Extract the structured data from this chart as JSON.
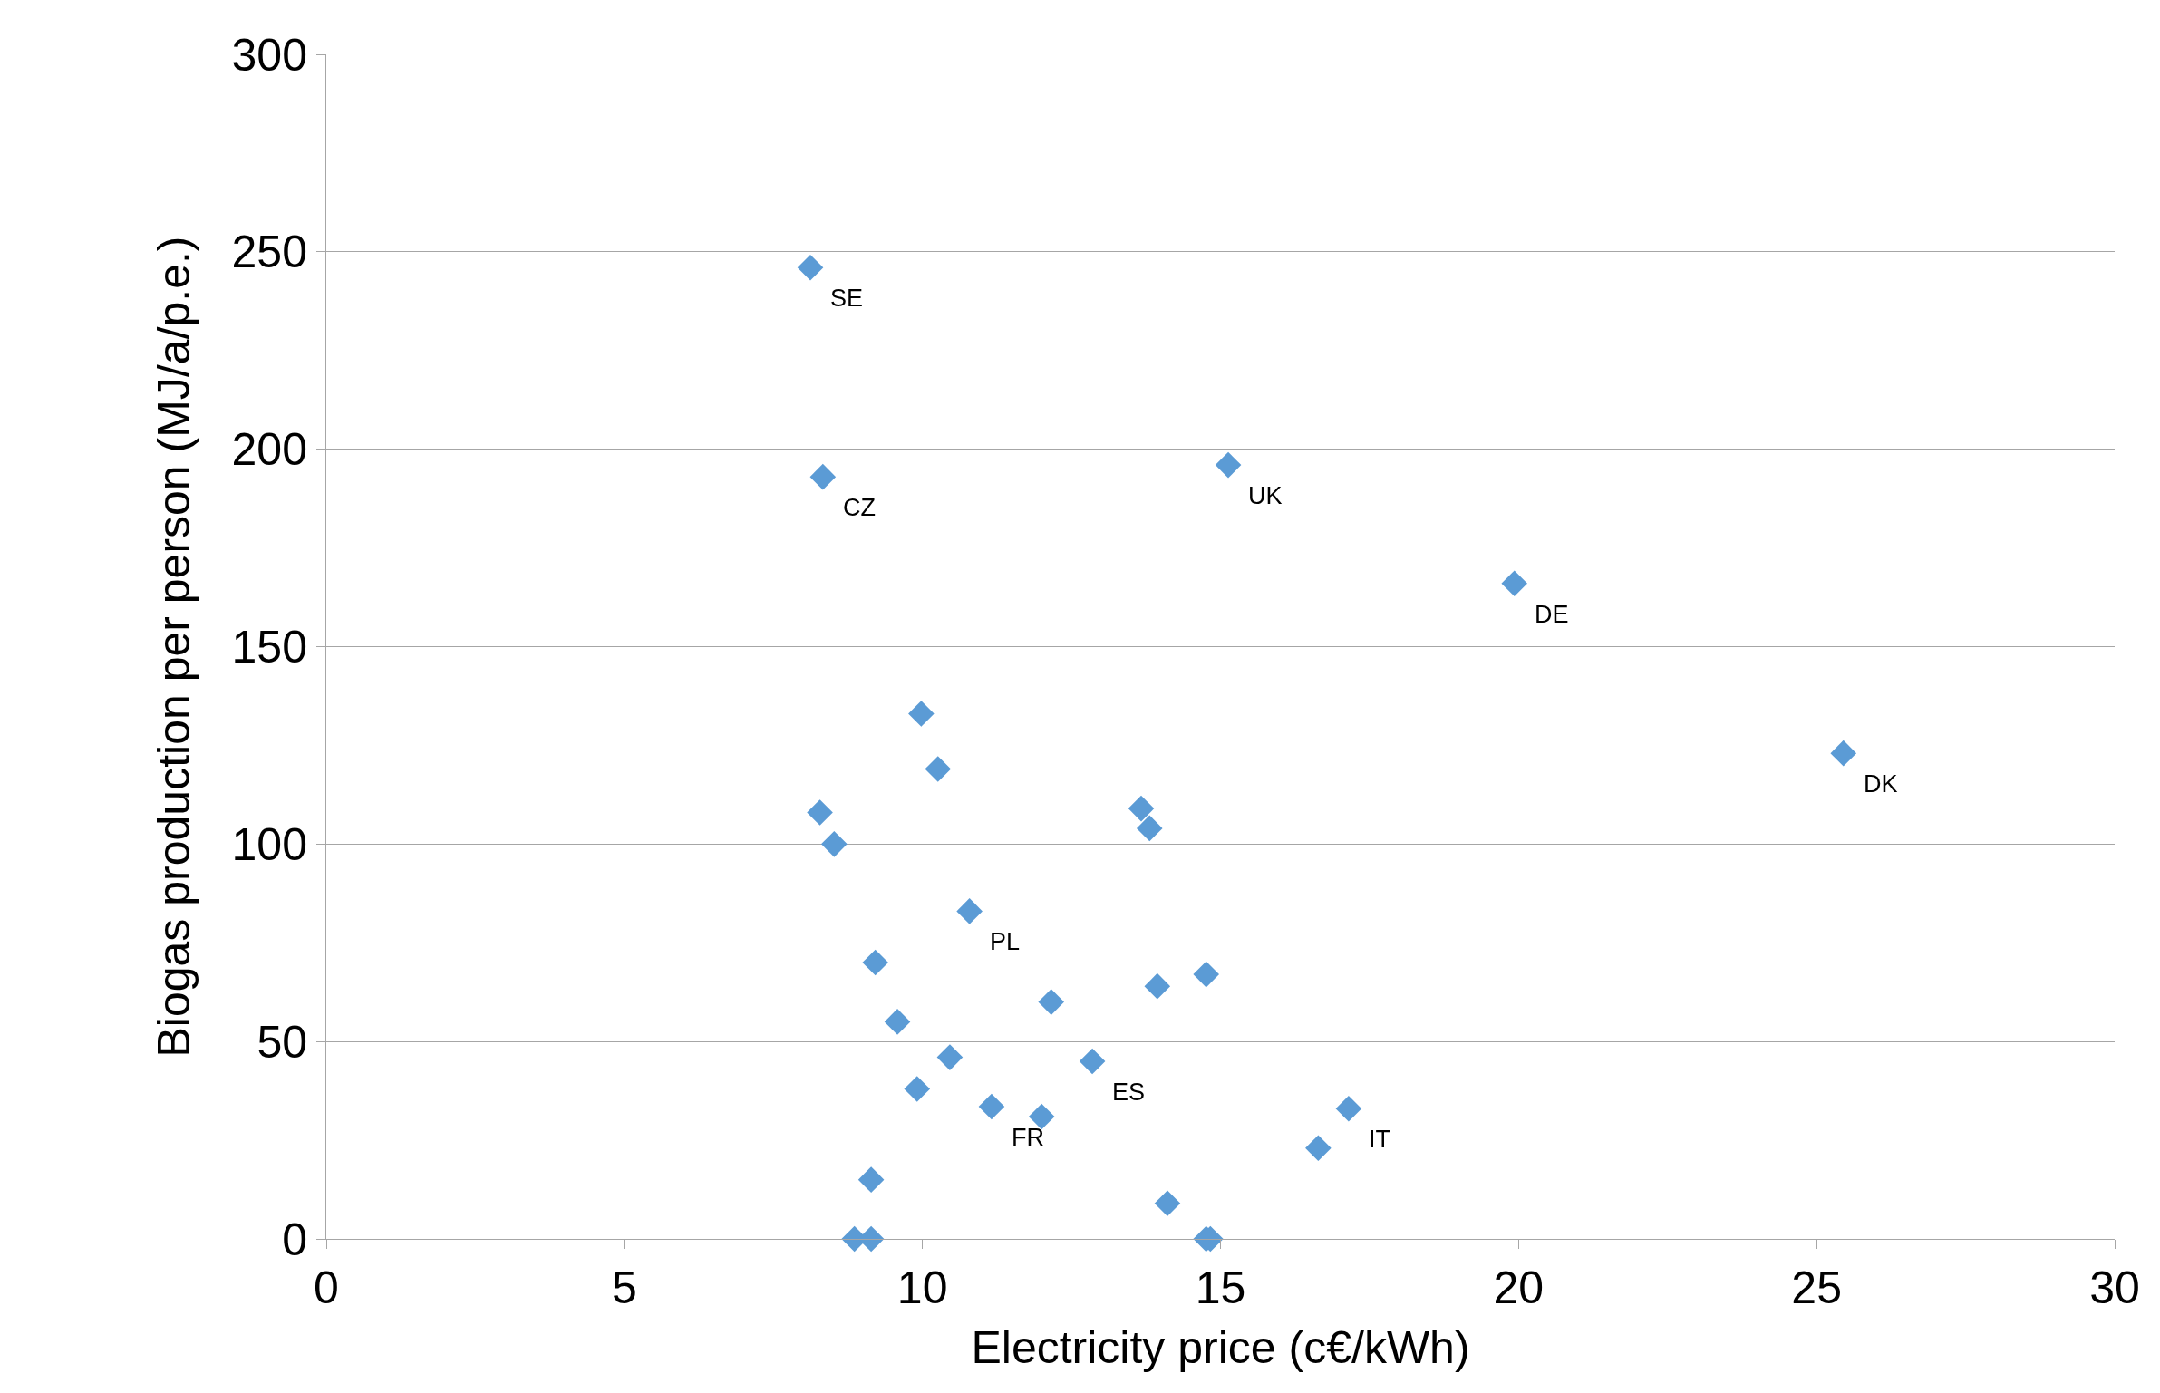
{
  "chart_data": {
    "type": "scatter",
    "xlabel": "Electricity price (c€/kWh)",
    "ylabel": "Biogas production per person (MJ/a/p.e.)",
    "xlim": [
      0,
      30
    ],
    "xticks": [
      0,
      5,
      10,
      15,
      20,
      25,
      30
    ],
    "ylim": [
      0,
      300
    ],
    "yticks": [
      0,
      50,
      100,
      150,
      200,
      250,
      300
    ],
    "grid": "y",
    "marker": "diamond",
    "series": [
      {
        "color": "#5b9bd5",
        "x": [
          8.12,
          8.33,
          15.13,
          19.93,
          25.45,
          9.98,
          10.26,
          8.28,
          8.52,
          13.67,
          13.81,
          10.79,
          9.21,
          9.58,
          12.16,
          13.94,
          14.76,
          10.46,
          12.85,
          9.91,
          11.16,
          12.0,
          17.15,
          16.64,
          9.14,
          14.11,
          8.86,
          9.14,
          14.76,
          14.83
        ],
        "values": [
          246,
          193,
          196,
          166,
          123,
          133,
          119,
          108,
          100,
          109,
          104,
          83,
          70,
          55,
          60,
          64,
          67,
          46,
          45,
          38,
          33.5,
          31,
          33,
          23,
          15,
          9,
          0,
          0,
          0,
          0
        ]
      }
    ],
    "annotations": [
      {
        "text": "SE",
        "x": 8.12,
        "y": 246
      },
      {
        "text": "CZ",
        "x": 8.33,
        "y": 193
      },
      {
        "text": "UK",
        "x": 15.13,
        "y": 196
      },
      {
        "text": "DE",
        "x": 19.93,
        "y": 166
      },
      {
        "text": "DK",
        "x": 25.45,
        "y": 123
      },
      {
        "text": "PL",
        "x": 10.79,
        "y": 83
      },
      {
        "text": "ES",
        "x": 12.85,
        "y": 45
      },
      {
        "text": "FR",
        "x": 11.16,
        "y": 33.5
      },
      {
        "text": "IT",
        "x": 17.15,
        "y": 33
      }
    ]
  }
}
